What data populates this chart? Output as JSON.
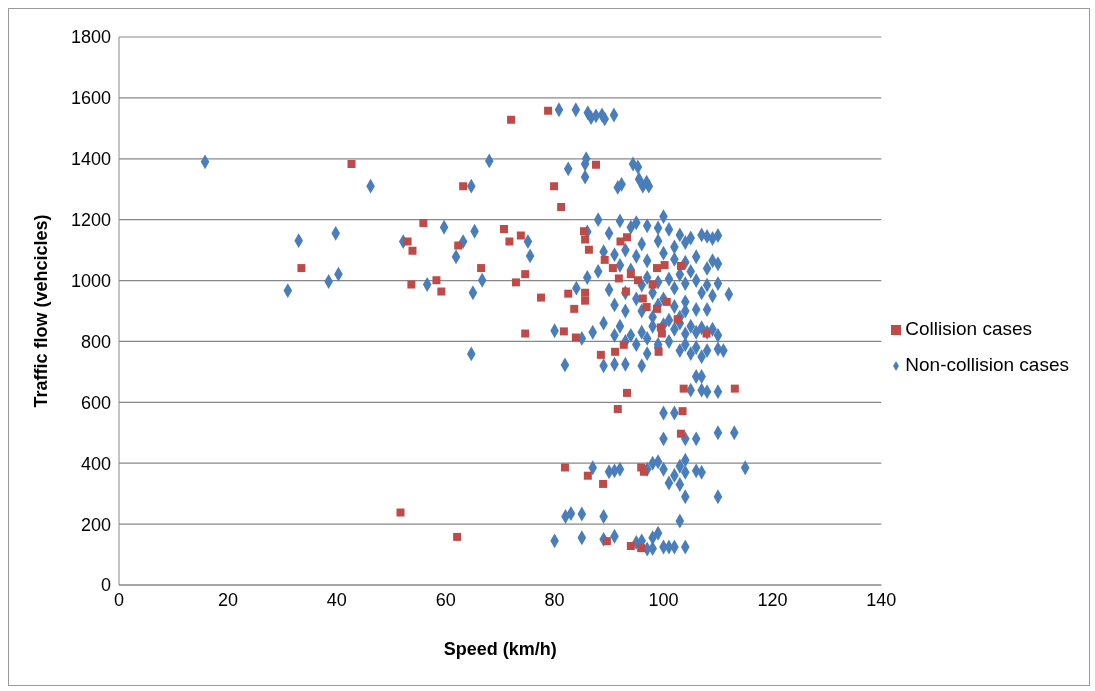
{
  "chart_data": {
    "type": "scatter",
    "xlabel": "Speed (km/h)",
    "ylabel": "Traffic flow (vehcicles)",
    "xlim": [
      0,
      140
    ],
    "xticks": [
      0,
      20,
      40,
      60,
      80,
      100,
      120,
      140
    ],
    "ylim": [
      0,
      1800
    ],
    "yticks": [
      0,
      200,
      400,
      600,
      800,
      1000,
      1200,
      1400,
      1600,
      1800
    ],
    "grid": "y",
    "legend": "right",
    "series": [
      {
        "name": "Non-collision cases",
        "color": "#4a7ebb",
        "marker": "diamond",
        "x": [
          15.8,
          31,
          33,
          39.8,
          38.5,
          40.3,
          46.2,
          52.2,
          56.6,
          59.7,
          61.9,
          63.2,
          64.7,
          65.3,
          65,
          64.7,
          66.7,
          68,
          75.1,
          75.5,
          80.8,
          83.9,
          86.1,
          86.7,
          87.6,
          88.7,
          89.2,
          90.9,
          85.8,
          85.6,
          82.5,
          85.6,
          91.6,
          92.3,
          94.4,
          95.3,
          95.5,
          96.2,
          96.9,
          97.3,
          88,
          92,
          95,
          97,
          99,
          101,
          100,
          94,
          90,
          86,
          103,
          105,
          107,
          108,
          110,
          109,
          104,
          102,
          99,
          96,
          93,
          91,
          89,
          95,
          97,
          100,
          102,
          104,
          106,
          109,
          110,
          108,
          105,
          103,
          101,
          99,
          97,
          94,
          92,
          88,
          86,
          84,
          90,
          93,
          96,
          98,
          100,
          102,
          104,
          106,
          108,
          110,
          112,
          109,
          107,
          104,
          102,
          99,
          96,
          93,
          91,
          95,
          98,
          101,
          103,
          105,
          107,
          109,
          110,
          108,
          106,
          104,
          102,
          100,
          98,
          96,
          94,
          92,
          89,
          87,
          85,
          80,
          108,
          104,
          106,
          103,
          101,
          99,
          97,
          95,
          93,
          91,
          104,
          106,
          108,
          110,
          111,
          105,
          107,
          103,
          99,
          97,
          89,
          91,
          93,
          81.9,
          96,
          106,
          107,
          105,
          108,
          107,
          110,
          100,
          102,
          100,
          104,
          106,
          110,
          113,
          106,
          107,
          104,
          103,
          104,
          102,
          103,
          101,
          100,
          99,
          98,
          97,
          91,
          90,
          92,
          87,
          115,
          104,
          110,
          103,
          82,
          83,
          85,
          89,
          99,
          98,
          80,
          85,
          89,
          91,
          95,
          96,
          97,
          98,
          100,
          101,
          102,
          104
        ],
        "values": [
          1390,
          967,
          1131,
          1155,
          997,
          1021,
          1310,
          1128,
          987,
          1175,
          1078,
          1128,
          1310,
          1162,
          960,
          759,
          1001,
          1393,
          1128,
          1081,
          1561,
          1561,
          1551,
          1535,
          1541,
          1544,
          1531,
          1544,
          1400,
          1383,
          1367,
          1340,
          1306,
          1316,
          1383,
          1373,
          1333,
          1310,
          1323,
          1310,
          1200,
          1196,
          1190,
          1180,
          1173,
          1168,
          1210,
          1175,
          1155,
          1160,
          1150,
          1140,
          1150,
          1145,
          1148,
          1138,
          1125,
          1110,
          1130,
          1120,
          1100,
          1085,
          1095,
          1080,
          1065,
          1090,
          1070,
          1060,
          1078,
          1065,
          1055,
          1040,
          1030,
          1020,
          1005,
          995,
          1010,
          1035,
          1050,
          1030,
          1010,
          975,
          970,
          960,
          985,
          960,
          940,
          975,
          990,
          1000,
          985,
          990,
          955,
          950,
          960,
          930,
          915,
          920,
          900,
          900,
          920,
          940,
          880,
          870,
          860,
          850,
          845,
          840,
          820,
          830,
          830,
          825,
          840,
          855,
          850,
          830,
          820,
          850,
          860,
          830,
          810,
          835,
          905,
          900,
          905,
          880,
          800,
          790,
          810,
          790,
          800,
          820,
          790,
          780,
          770,
          775,
          770,
          760,
          750,
          770,
          780,
          760,
          720,
          725,
          725,
          723,
          720,
          685,
          685,
          640,
          635,
          640,
          635,
          565,
          565,
          480,
          480,
          480,
          500,
          500,
          375,
          370,
          370,
          390,
          410,
          360,
          330,
          335,
          380,
          405,
          400,
          380,
          375,
          372,
          380,
          385,
          385,
          290,
          290,
          210,
          225,
          235,
          233,
          225,
          170,
          155,
          145,
          155,
          150,
          160,
          140,
          145,
          118,
          120,
          125,
          125,
          125,
          125
        ]
      },
      {
        "name": "Collision cases",
        "color": "#be4b48",
        "marker": "square",
        "x": [
          78.8,
          72,
          42.7,
          63.2,
          79.9,
          81.2,
          55.9,
          70.7,
          73.8,
          71.7,
          62.3,
          53,
          53.9,
          33.5,
          66.5,
          58.3,
          74.6,
          53.7,
          59.2,
          72.9,
          77.5,
          82.5,
          85.6,
          85.6,
          83.6,
          74.6,
          81.7,
          83.9,
          85.4,
          85.6,
          86.3,
          89.2,
          92.1,
          93.3,
          90.7,
          91.8,
          94,
          95.3,
          93.1,
          96.9,
          98,
          98.8,
          100.2,
          103.2,
          96.2,
          98.8,
          100.6,
          102.6,
          99.5,
          99.1,
          92.7,
          91.1,
          88.5,
          99.7,
          107.9,
          87.6,
          93.3,
          91.6,
          103.7,
          113.1,
          103.5,
          103.2,
          81.9,
          86.1,
          88.9,
          95.9,
          96.4,
          51.7,
          62.1,
          89.6,
          94,
          95.9
        ],
        "values": [
          1558,
          1528,
          1383,
          1310,
          1310,
          1242,
          1189,
          1169,
          1148,
          1128,
          1115,
          1128,
          1098,
          1041,
          1041,
          1001,
          1021,
          987,
          964,
          994,
          944,
          957,
          960,
          934,
          907,
          826,
          833,
          813,
          1162,
          1135,
          1101,
          1068,
          1128,
          1142,
          1041,
          1007,
          1021,
          1001,
          964,
          913,
          987,
          1041,
          1051,
          1048,
          941,
          907,
          930,
          873,
          846,
          766,
          789,
          766,
          756,
          826,
          826,
          1380,
          631,
          578,
          645,
          645,
          571,
          497,
          386,
          359,
          332,
          386,
          372,
          238,
          158,
          144,
          128,
          121
        ]
      }
    ]
  }
}
